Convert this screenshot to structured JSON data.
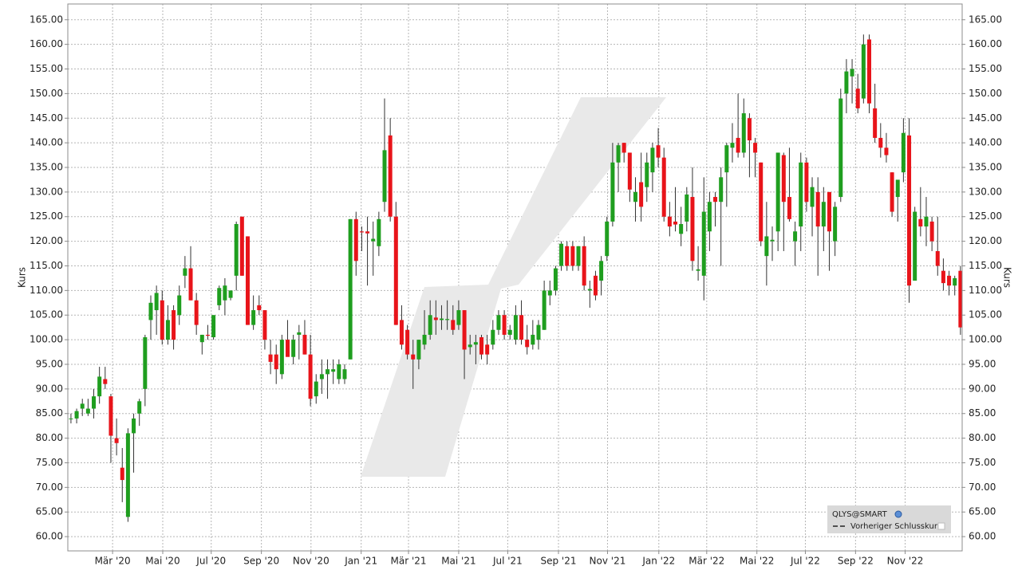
{
  "chart_data": {
    "type": "candlestick",
    "symbol": "QLYS@SMART",
    "legend_items": [
      "Vorheriger Schlusskurs"
    ],
    "ylabel": "Kurs",
    "y2label": "Kurs",
    "up_color": "#1f9e1f",
    "down_color": "#e8141a",
    "wick_color": "#333333",
    "grid": true,
    "ylim": [
      57.1,
      168.2
    ],
    "yticks": [
      {
        "value": 60,
        "label": "60.00"
      },
      {
        "value": 65,
        "label": "65.00"
      },
      {
        "value": 70,
        "label": "70.00"
      },
      {
        "value": 75,
        "label": "75.00"
      },
      {
        "value": 80,
        "label": "80.00"
      },
      {
        "value": 85,
        "label": "85.00"
      },
      {
        "value": 90,
        "label": "90.00"
      },
      {
        "value": 95,
        "label": "95.00"
      },
      {
        "value": 100,
        "label": "100.00"
      },
      {
        "value": 105,
        "label": "105.00"
      },
      {
        "value": 110,
        "label": "110.00"
      },
      {
        "value": 115,
        "label": "115.00"
      },
      {
        "value": 120,
        "label": "120.00"
      },
      {
        "value": 125,
        "label": "125.00"
      },
      {
        "value": 130,
        "label": "130.00"
      },
      {
        "value": 135,
        "label": "135.00"
      },
      {
        "value": 140,
        "label": "140.00"
      },
      {
        "value": 145,
        "label": "145.00"
      },
      {
        "value": 150,
        "label": "150.00"
      },
      {
        "value": 155,
        "label": "155.00"
      },
      {
        "value": 160,
        "label": "160.00"
      },
      {
        "value": 165,
        "label": "165.00"
      }
    ],
    "xlim": [
      -0.55,
      156.3
    ],
    "xticks": [
      {
        "value": 7.3,
        "label": "Mär '20"
      },
      {
        "value": 16.1,
        "label": "Mai '20"
      },
      {
        "value": 24.6,
        "label": "Jul '20"
      },
      {
        "value": 33.4,
        "label": "Sep '20"
      },
      {
        "value": 42.1,
        "label": "Nov '20"
      },
      {
        "value": 50.9,
        "label": "Jan '21"
      },
      {
        "value": 59.2,
        "label": "Mär '21"
      },
      {
        "value": 68.0,
        "label": "Mai '21"
      },
      {
        "value": 76.6,
        "label": "Jul '21"
      },
      {
        "value": 85.5,
        "label": "Sep '21"
      },
      {
        "value": 94.1,
        "label": "Nov '21"
      },
      {
        "value": 103.1,
        "label": "Jan '22"
      },
      {
        "value": 111.5,
        "label": "Mär '22"
      },
      {
        "value": 120.3,
        "label": "Mai '22"
      },
      {
        "value": 128.8,
        "label": "Jul '22"
      },
      {
        "value": 137.6,
        "label": "Sep '22"
      },
      {
        "value": 146.3,
        "label": "Nov '22"
      }
    ],
    "open": [
      84,
      84,
      86,
      85,
      86,
      88.5,
      92,
      88.5,
      80,
      74,
      64,
      81,
      85,
      90,
      104,
      106,
      108,
      100,
      106,
      105,
      113,
      114.5,
      108,
      99.5,
      101,
      100.5,
      107,
      108,
      108.5,
      113,
      125,
      121,
      103,
      107,
      106,
      97,
      97,
      93,
      100,
      96.5,
      101,
      101,
      97,
      88.5,
      92,
      93,
      93.5,
      92,
      92,
      96,
      124.5,
      122,
      122,
      120,
      119,
      128,
      141.5,
      125,
      104,
      102,
      97,
      96,
      99,
      101,
      104.5,
      104,
      104,
      104,
      103,
      106,
      98.5,
      99,
      100.5,
      99,
      99,
      102,
      105,
      101,
      100,
      105,
      100,
      99,
      100,
      102,
      109,
      110,
      115,
      119,
      119,
      115,
      119,
      110,
      113,
      112,
      117,
      124,
      136,
      140,
      138,
      128,
      132,
      131,
      134,
      139.5,
      137,
      125,
      124,
      121.5,
      124,
      129,
      114,
      113,
      122,
      129,
      128,
      134,
      139,
      141,
      138,
      145,
      140,
      136,
      117,
      120,
      122,
      137.5,
      129,
      120,
      123,
      136,
      127,
      130,
      123,
      130,
      120,
      129,
      150,
      153.5,
      151,
      149,
      161,
      147,
      141,
      139,
      134,
      129,
      134,
      141.5,
      112,
      124.5,
      123,
      124,
      118,
      114,
      113,
      111,
      114
    ],
    "high": [
      85,
      86,
      88,
      88,
      90,
      94.5,
      94.5,
      89,
      84,
      78,
      82,
      85,
      88,
      101,
      109,
      111,
      110,
      107,
      107,
      111,
      117,
      119,
      109.5,
      101,
      103,
      105,
      111,
      112.5,
      110,
      124,
      125,
      121,
      109,
      109,
      106,
      100,
      99,
      101,
      104,
      101,
      103,
      104,
      101,
      93,
      96,
      96,
      96,
      96,
      95,
      124.5,
      126,
      123,
      125,
      124,
      126,
      149,
      145,
      128,
      107,
      103,
      100,
      100,
      106,
      108,
      108,
      107,
      108,
      107,
      108,
      106,
      101,
      101,
      101,
      101,
      104,
      106,
      106,
      103,
      107,
      108,
      103,
      104,
      104,
      112,
      112,
      115,
      120,
      120,
      120,
      119,
      121,
      112,
      114,
      117,
      125,
      140,
      140,
      140,
      138,
      133,
      138,
      138,
      140,
      143,
      139,
      128,
      131,
      127,
      131,
      135,
      119,
      133,
      130,
      130,
      135,
      140,
      144,
      150,
      149,
      146,
      141,
      136,
      128,
      123,
      138,
      138,
      139,
      124,
      138,
      137,
      133,
      133,
      131,
      130,
      128,
      151,
      157,
      157,
      154,
      162,
      162,
      152,
      144,
      142,
      134,
      132,
      145,
      145,
      127,
      131,
      129,
      125,
      125,
      116.5,
      114,
      113,
      115
    ],
    "low": [
      83,
      83,
      84.5,
      84.5,
      84,
      87,
      90,
      75,
      76.5,
      67,
      63,
      73,
      82.5,
      86.5,
      100,
      101,
      99,
      99,
      98,
      103,
      110.5,
      108,
      101,
      97,
      100,
      100,
      106,
      105,
      108,
      110,
      113,
      103,
      102,
      105,
      98,
      93,
      91,
      92,
      97,
      95,
      96,
      97,
      86.5,
      87,
      89,
      88,
      91,
      91,
      91,
      96,
      113,
      118,
      111,
      113,
      117,
      126,
      124,
      103,
      98,
      96,
      90,
      94,
      98,
      100,
      101,
      102,
      102,
      101,
      102,
      92,
      97,
      95,
      96,
      95,
      98,
      101,
      100,
      100,
      99,
      99,
      97,
      98,
      98,
      102,
      107,
      109,
      114,
      114,
      114,
      114,
      110,
      106.5,
      108,
      109,
      116,
      123,
      130,
      136,
      128,
      124,
      124,
      128,
      130,
      135,
      124,
      121,
      122,
      119,
      122,
      114,
      112,
      108,
      118,
      123,
      115,
      127,
      136,
      137,
      137,
      133,
      133,
      119,
      111,
      116,
      118,
      118,
      124,
      115,
      118,
      126,
      121,
      113,
      118,
      114,
      117,
      128,
      146,
      148,
      146,
      148,
      146,
      140,
      137,
      136,
      125,
      124,
      132,
      107.5,
      112,
      121,
      119,
      118,
      113,
      110,
      109,
      109,
      101
    ],
    "close": [
      84,
      85.5,
      87,
      86,
      88.5,
      92.5,
      91,
      80.5,
      79,
      71.5,
      81,
      84,
      87.5,
      100.5,
      107.5,
      109.5,
      100,
      104,
      100,
      109,
      114.5,
      108,
      103,
      101,
      100.8,
      105,
      110.5,
      111,
      110,
      123.5,
      113,
      103,
      106,
      106,
      100,
      95.5,
      94,
      100,
      96.5,
      100,
      101.5,
      97,
      88,
      91.5,
      93,
      94,
      94,
      95,
      94,
      124.5,
      116,
      121.8,
      121.6,
      120.5,
      124.5,
      138.5,
      125,
      103,
      99,
      97,
      96,
      100,
      101,
      105,
      104,
      104.3,
      104.2,
      102,
      106,
      98,
      99,
      99.5,
      97,
      97,
      102,
      105,
      101,
      102,
      105,
      100,
      98.5,
      101,
      103,
      110,
      110,
      114.5,
      119.5,
      115,
      115,
      119,
      111,
      110.3,
      109,
      116,
      124,
      136,
      139.5,
      138,
      130.5,
      130,
      127,
      136,
      139,
      137,
      125,
      123,
      123.4,
      123.5,
      129.5,
      116,
      114.3,
      126,
      128,
      128,
      133,
      139.5,
      140,
      138,
      146,
      140.5,
      138,
      120,
      121,
      120.3,
      138,
      128,
      124.5,
      122,
      136,
      128,
      131,
      123,
      128,
      122,
      127,
      149,
      154.5,
      155,
      147,
      160,
      148,
      141,
      139,
      137.5,
      126,
      132.5,
      142,
      111,
      126,
      123,
      125,
      120,
      115,
      111.5,
      111,
      112.5,
      102.5
    ]
  }
}
